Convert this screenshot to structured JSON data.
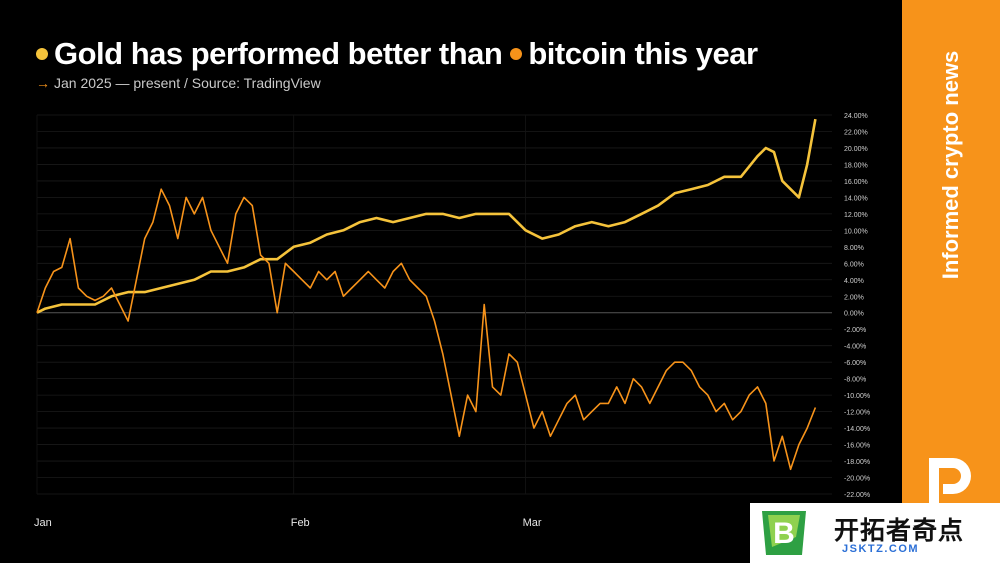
{
  "header": {
    "title_part1": "Gold has performed better than",
    "title_part2": "bitcoin this year",
    "subtitle_arrow": "→",
    "subtitle": "Jan 2025 — present / Source: TradingView"
  },
  "sidebar": {
    "brand": "Informed crypto news",
    "logo_icon": "protos-logo-icon"
  },
  "watermark": {
    "text": "开拓者奇点",
    "url": "JSKTZ.COM",
    "logo_letter": "B"
  },
  "colors": {
    "gold": "#f5c33b",
    "bitcoin": "#f7931a",
    "sidebar": "#f7931a"
  },
  "chart_data": {
    "type": "line",
    "title": "Gold has performed better than bitcoin this year",
    "subtitle": "Jan 2025 — present / Source: TradingView",
    "x_unit": "day of 2025 (Jan 1 = 0)",
    "x_ticks": [
      {
        "label": "Jan",
        "x": 0
      },
      {
        "label": "Feb",
        "x": 31
      },
      {
        "label": "Mar",
        "x": 59
      }
    ],
    "xlim": [
      0,
      96
    ],
    "ylim": [
      -22,
      24
    ],
    "y_ticks": [
      24,
      22,
      20,
      18,
      16,
      14,
      12,
      10,
      8,
      6,
      4,
      2,
      0,
      -2,
      -4,
      -6,
      -8,
      -10,
      -12,
      -14,
      -16,
      -18,
      -20,
      -22
    ],
    "y_tick_labels": [
      "24.00%",
      "22.00%",
      "20.00%",
      "18.00%",
      "16.00%",
      "14.00%",
      "12.00%",
      "10.00%",
      "8.00%",
      "6.00%",
      "4.00%",
      "2.00%",
      "0.00%",
      "-2.00%",
      "-4.00%",
      "-6.00%",
      "-8.00%",
      "-10.00%",
      "-12.00%",
      "-14.00%",
      "-16.00%",
      "-18.00%",
      "-20.00%",
      "-22.00%"
    ],
    "grid": true,
    "legend": "in title",
    "series": [
      {
        "name": "Gold",
        "color": "#f5c33b",
        "x": [
          0,
          1,
          3,
          5,
          7,
          9,
          11,
          13,
          15,
          17,
          19,
          21,
          23,
          25,
          27,
          29,
          31,
          33,
          35,
          37,
          39,
          41,
          43,
          45,
          47,
          49,
          51,
          53,
          55,
          57,
          59,
          61,
          63,
          65,
          67,
          69,
          71,
          73,
          75,
          77,
          79,
          81,
          83,
          85,
          87,
          88,
          89,
          90,
          91,
          92,
          93,
          94
        ],
        "y": [
          0,
          0.5,
          1,
          1,
          1,
          2,
          2.5,
          2.5,
          3,
          3.5,
          4,
          5,
          5,
          5.5,
          6.5,
          6.5,
          8,
          8.5,
          9.5,
          10,
          11,
          11.5,
          11,
          11.5,
          12,
          12,
          11.5,
          12,
          12,
          12,
          10,
          9,
          9.5,
          10.5,
          11,
          10.5,
          11,
          12,
          13,
          14.5,
          15,
          15.5,
          16.5,
          16.5,
          19,
          20,
          19.5,
          16,
          15,
          14,
          18,
          23.5
        ]
      },
      {
        "name": "Bitcoin",
        "color": "#f7931a",
        "x": [
          0,
          1,
          2,
          3,
          4,
          5,
          6,
          7,
          8,
          9,
          10,
          11,
          12,
          13,
          14,
          15,
          16,
          17,
          18,
          19,
          20,
          21,
          22,
          23,
          24,
          25,
          26,
          27,
          28,
          29,
          30,
          31,
          32,
          33,
          34,
          35,
          36,
          37,
          38,
          39,
          40,
          41,
          42,
          43,
          44,
          45,
          46,
          47,
          48,
          49,
          50,
          51,
          52,
          53,
          54,
          55,
          56,
          57,
          58,
          59,
          60,
          61,
          62,
          63,
          64,
          65,
          66,
          67,
          68,
          69,
          70,
          71,
          72,
          73,
          74,
          75,
          76,
          77,
          78,
          79,
          80,
          81,
          82,
          83,
          84,
          85,
          86,
          87,
          88,
          89,
          90,
          91,
          92,
          93,
          94
        ],
        "y": [
          0,
          3,
          5,
          5.5,
          9,
          3,
          2,
          1.5,
          2,
          3,
          1,
          -1,
          4,
          9,
          11,
          15,
          13,
          9,
          14,
          12,
          14,
          10,
          8,
          6,
          12,
          14,
          13,
          7,
          6,
          0,
          6,
          5,
          4,
          3,
          5,
          4,
          5,
          2,
          3,
          4,
          5,
          4,
          3,
          5,
          6,
          4,
          3,
          2,
          -1,
          -5,
          -10,
          -15,
          -10,
          -12,
          1,
          -9,
          -10,
          -5,
          -6,
          -10,
          -14,
          -12,
          -15,
          -13,
          -11,
          -10,
          -13,
          -12,
          -11,
          -11,
          -9,
          -11,
          -8,
          -9,
          -11,
          -9,
          -7,
          -6,
          -6,
          -7,
          -9,
          -10,
          -12,
          -11,
          -13,
          -12,
          -10,
          -9,
          -11,
          -18,
          -15,
          -19,
          -16,
          -14,
          -11.5
        ]
      }
    ]
  }
}
